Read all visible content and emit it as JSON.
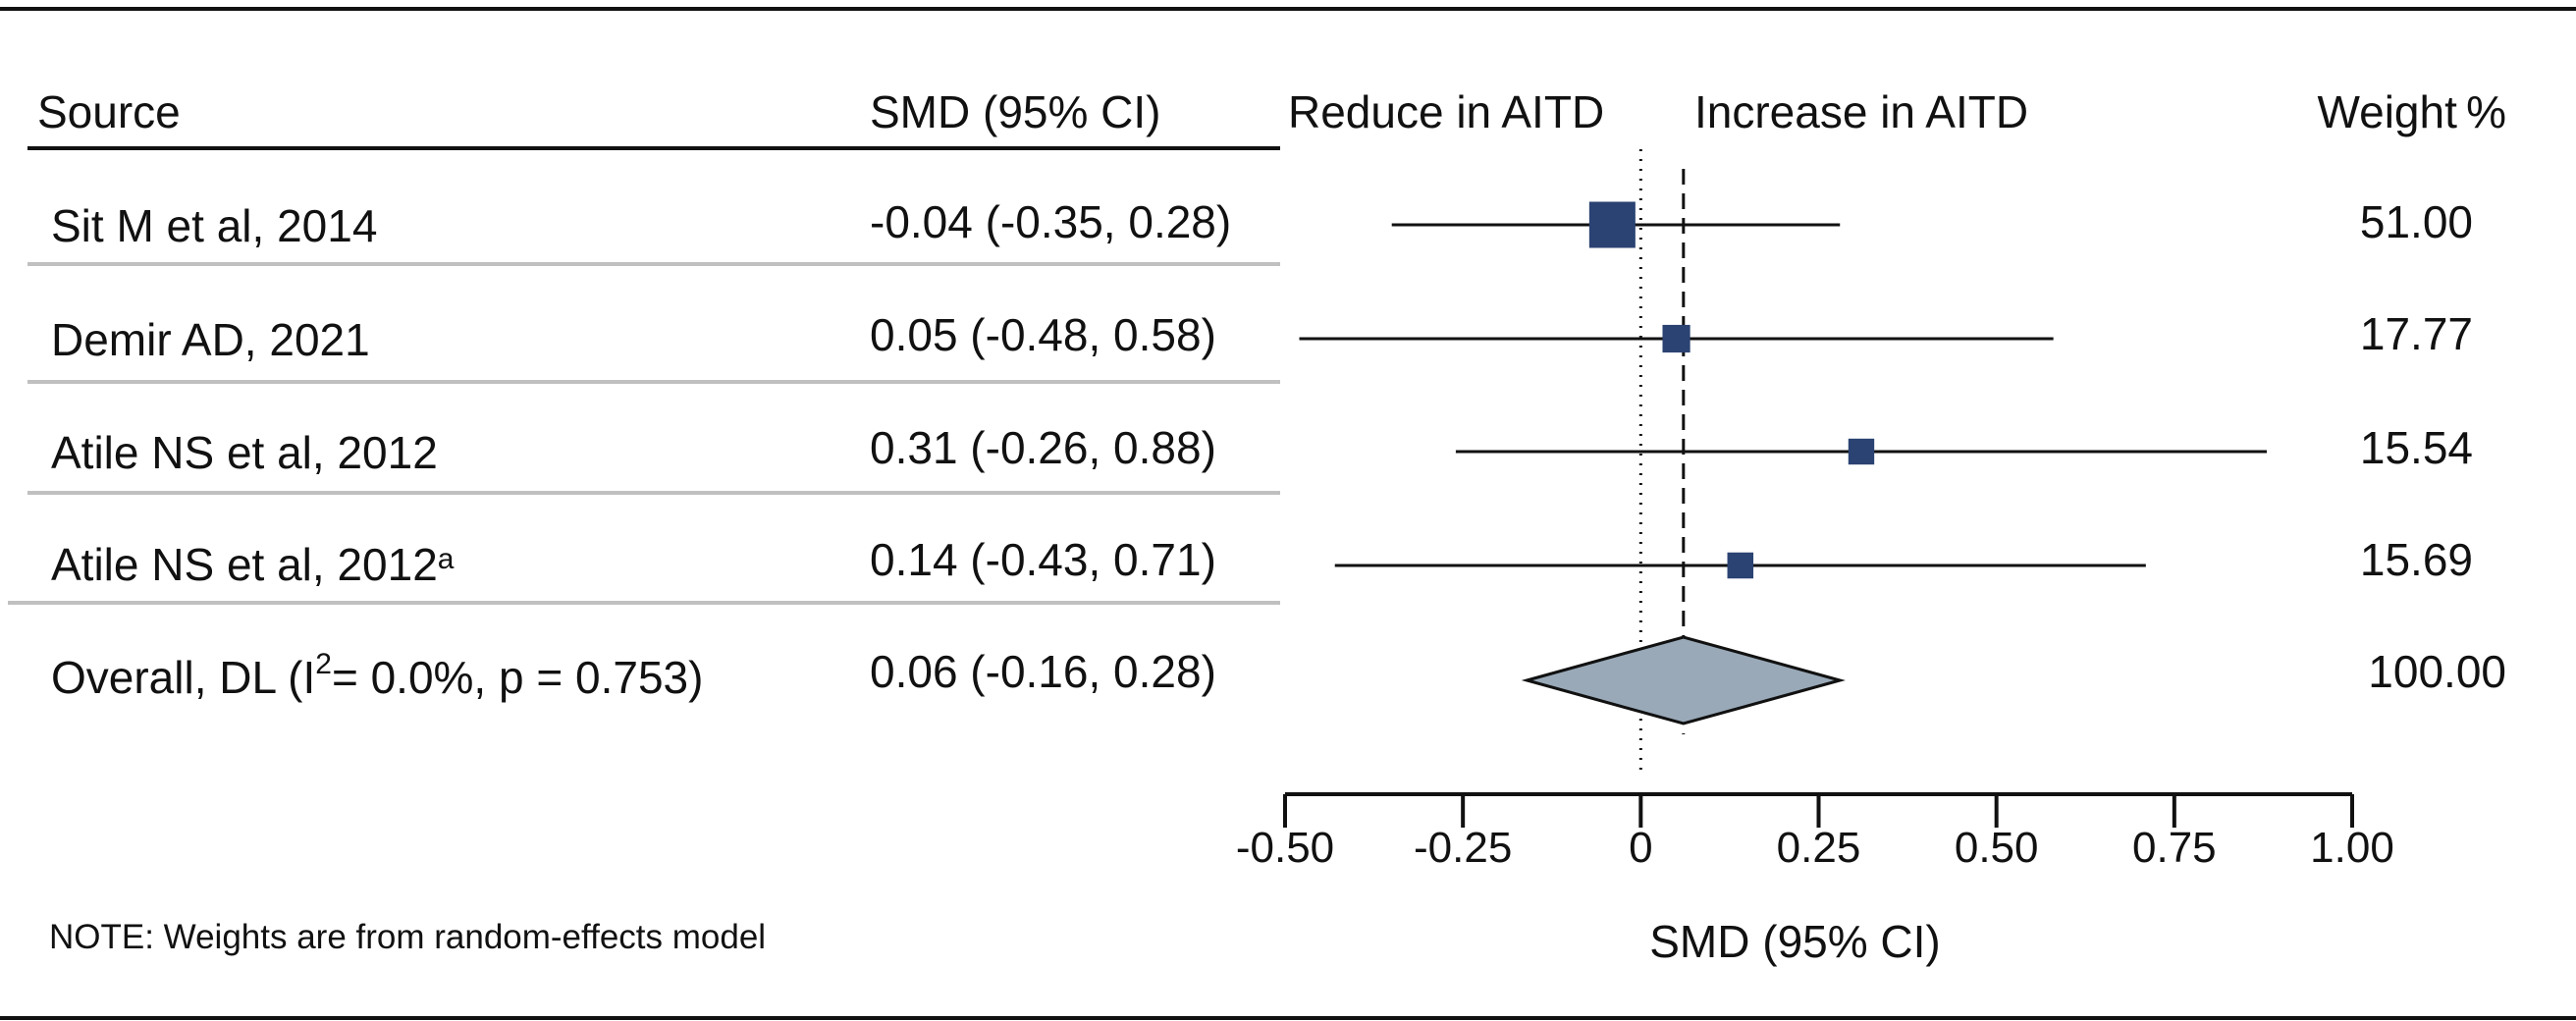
{
  "chart_data": {
    "type": "forest",
    "headers": {
      "source": "Source",
      "effect": "SMD (95% CI)",
      "left_direction": "Reduce in AITD",
      "right_direction": "Increase in AITD",
      "weight": "Weight %"
    },
    "studies": [
      {
        "source": "Sit M et al, 2014",
        "superscript": "",
        "smd": -0.04,
        "lower": -0.35,
        "upper": 0.28,
        "ci_text": "-0.04 (-0.35, 0.28)",
        "weight": 51.0,
        "weight_text": "51.00"
      },
      {
        "source": "Demir AD, 2021",
        "superscript": "",
        "smd": 0.05,
        "lower": -0.48,
        "upper": 0.58,
        "ci_text": "0.05 (-0.48, 0.58)",
        "weight": 17.77,
        "weight_text": "17.77"
      },
      {
        "source": "Atile NS et al, 2012",
        "superscript": "",
        "smd": 0.31,
        "lower": -0.26,
        "upper": 0.88,
        "ci_text": "0.31 (-0.26, 0.88)",
        "weight": 15.54,
        "weight_text": "15.54"
      },
      {
        "source": "Atile NS et al, 2012",
        "superscript": "a",
        "smd": 0.14,
        "lower": -0.43,
        "upper": 0.71,
        "ci_text": "0.14 (-0.43, 0.71)",
        "weight": 15.69,
        "weight_text": "15.69"
      }
    ],
    "overall": {
      "label_prefix": "Overall, DL (I",
      "label_sup": "2",
      "label_suffix": "= 0.0%, p = 0.753)",
      "smd": 0.06,
      "lower": -0.16,
      "upper": 0.28,
      "ci_text": "0.06 (-0.16, 0.28)",
      "weight": 100.0,
      "weight_text": "100.00"
    },
    "x_axis": {
      "label": "SMD (95% CI)",
      "ticks": [
        -0.5,
        -0.25,
        0,
        0.25,
        0.5,
        0.75,
        1.0
      ],
      "tick_labels": [
        "-0.50",
        "-0.25",
        "0",
        "0.25",
        "0.50",
        "0.75",
        "1.00"
      ],
      "range": [
        -0.5,
        1.0
      ],
      "null_line": 0
    },
    "note": "NOTE: Weights are from random-effects model",
    "colors": {
      "marker": "#2b4372",
      "diamond_fill": "#99a9b8",
      "line": "#111111",
      "separator": "#c0c0c0"
    }
  }
}
